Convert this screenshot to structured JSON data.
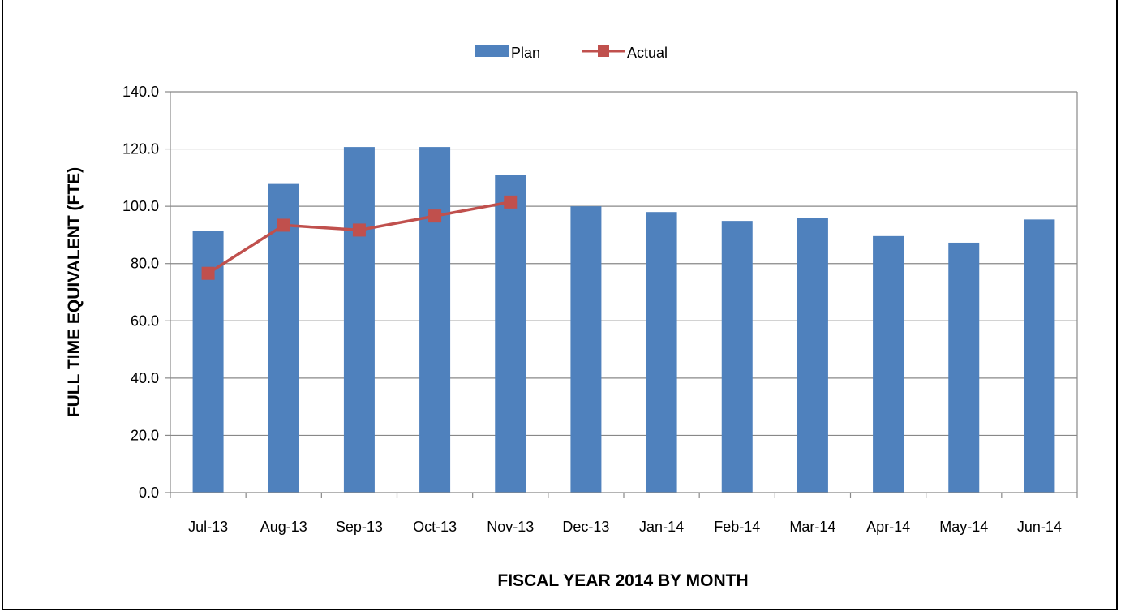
{
  "chart_data": {
    "type": "bar",
    "title": "",
    "categories": [
      "Jul-13",
      "Aug-13",
      "Sep-13",
      "Oct-13",
      "Nov-13",
      "Dec-13",
      "Jan-14",
      "Feb-14",
      "Mar-14",
      "Apr-14",
      "May-14",
      "Jun-14"
    ],
    "series": [
      {
        "name": "Plan",
        "type": "bar",
        "color": "#4F81BD",
        "values": [
          91.5,
          107.8,
          120.7,
          120.7,
          111.0,
          100.0,
          98.0,
          94.9,
          95.9,
          89.6,
          87.3,
          95.4
        ]
      },
      {
        "name": "Actual",
        "type": "line",
        "color": "#C0504D",
        "values": [
          76.6,
          93.4,
          91.7,
          96.6,
          101.5,
          null,
          null,
          null,
          null,
          null,
          null,
          null
        ]
      }
    ],
    "xlabel": "FISCAL YEAR 2014 BY MONTH",
    "ylabel": "FULL TIME EQUIVALENT (FTE)",
    "ylim": [
      0,
      140
    ],
    "yticks": [
      "0.0",
      "20.0",
      "40.0",
      "60.0",
      "80.0",
      "100.0",
      "120.0",
      "140.0"
    ],
    "grid": true,
    "legend_position": "top"
  }
}
